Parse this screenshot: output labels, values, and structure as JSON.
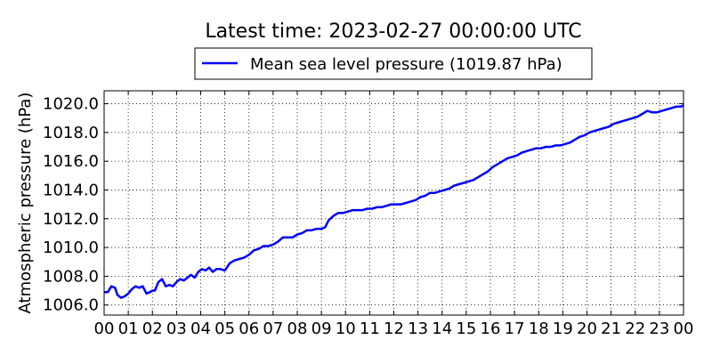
{
  "chart_data": {
    "type": "line",
    "title": "Latest time: 2023-02-27 00:00:00 UTC",
    "xlabel": "",
    "ylabel": "Atmospheric pressure (hPa)",
    "x_tick_labels": [
      "00",
      "01",
      "02",
      "03",
      "04",
      "05",
      "06",
      "07",
      "08",
      "09",
      "10",
      "11",
      "12",
      "13",
      "14",
      "15",
      "16",
      "17",
      "18",
      "19",
      "20",
      "21",
      "22",
      "23",
      "00"
    ],
    "y_tick_labels": [
      "1006.0",
      "1008.0",
      "1010.0",
      "1012.0",
      "1014.0",
      "1016.0",
      "1018.0",
      "1020.0"
    ],
    "xlim": [
      0,
      24
    ],
    "ylim": [
      1005.3,
      1020.9
    ],
    "grid": true,
    "legend_position": "top-center",
    "series": [
      {
        "name": "Mean sea level pressure (1019.87 hPa)",
        "color": "#0000ff",
        "x": [
          0,
          0.15,
          0.3,
          0.45,
          0.55,
          0.7,
          0.85,
          1.0,
          1.15,
          1.3,
          1.45,
          1.6,
          1.75,
          1.9,
          2.0,
          2.1,
          2.25,
          2.4,
          2.55,
          2.7,
          2.85,
          3.0,
          3.15,
          3.3,
          3.45,
          3.6,
          3.75,
          3.9,
          4.05,
          4.2,
          4.35,
          4.5,
          4.65,
          4.8,
          5.0,
          5.2,
          5.4,
          5.6,
          5.8,
          6.0,
          6.2,
          6.4,
          6.6,
          6.8,
          7.0,
          7.2,
          7.4,
          7.6,
          7.8,
          8.0,
          8.2,
          8.4,
          8.6,
          8.8,
          9.0,
          9.15,
          9.3,
          9.5,
          9.7,
          9.9,
          10.1,
          10.3,
          10.5,
          10.7,
          10.9,
          11.1,
          11.3,
          11.5,
          11.7,
          11.9,
          12.1,
          12.3,
          12.5,
          12.7,
          12.9,
          13.1,
          13.3,
          13.5,
          13.7,
          13.9,
          14.1,
          14.3,
          14.5,
          14.7,
          14.9,
          15.1,
          15.3,
          15.5,
          15.7,
          15.9,
          16.1,
          16.3,
          16.5,
          16.7,
          16.9,
          17.1,
          17.3,
          17.5,
          17.7,
          17.9,
          18.1,
          18.3,
          18.5,
          18.7,
          18.9,
          19.1,
          19.3,
          19.5,
          19.7,
          19.9,
          20.1,
          20.3,
          20.5,
          20.7,
          20.9,
          21.1,
          21.3,
          21.5,
          21.7,
          21.9,
          22.1,
          22.3,
          22.5,
          22.7,
          22.9,
          23.1,
          23.3,
          23.5,
          23.7,
          23.9,
          24.0
        ],
        "y": [
          1006.9,
          1006.9,
          1007.3,
          1007.2,
          1006.7,
          1006.5,
          1006.6,
          1006.8,
          1007.1,
          1007.3,
          1007.2,
          1007.3,
          1006.8,
          1006.9,
          1007.0,
          1007.0,
          1007.6,
          1007.8,
          1007.3,
          1007.4,
          1007.3,
          1007.6,
          1007.8,
          1007.7,
          1007.9,
          1008.1,
          1007.9,
          1008.3,
          1008.5,
          1008.4,
          1008.6,
          1008.3,
          1008.5,
          1008.5,
          1008.4,
          1008.9,
          1009.1,
          1009.2,
          1009.3,
          1009.5,
          1009.8,
          1009.9,
          1010.1,
          1010.1,
          1010.2,
          1010.4,
          1010.7,
          1010.7,
          1010.7,
          1010.9,
          1011.0,
          1011.2,
          1011.2,
          1011.3,
          1011.3,
          1011.4,
          1011.9,
          1012.2,
          1012.4,
          1012.4,
          1012.5,
          1012.6,
          1012.6,
          1012.6,
          1012.7,
          1012.7,
          1012.8,
          1012.8,
          1012.9,
          1013.0,
          1013.0,
          1013.0,
          1013.1,
          1013.2,
          1013.3,
          1013.5,
          1013.6,
          1013.8,
          1013.8,
          1013.9,
          1014.0,
          1014.1,
          1014.3,
          1014.4,
          1014.5,
          1014.6,
          1014.7,
          1014.9,
          1015.1,
          1015.3,
          1015.6,
          1015.8,
          1016.0,
          1016.2,
          1016.3,
          1016.4,
          1016.6,
          1016.7,
          1016.8,
          1016.9,
          1016.9,
          1017.0,
          1017.0,
          1017.1,
          1017.1,
          1017.2,
          1017.3,
          1017.5,
          1017.7,
          1017.8,
          1018.0,
          1018.1,
          1018.2,
          1018.3,
          1018.4,
          1018.6,
          1018.7,
          1018.8,
          1018.9,
          1019.0,
          1019.1,
          1019.3,
          1019.5,
          1019.4,
          1019.4,
          1019.5,
          1019.6,
          1019.7,
          1019.8,
          1019.8,
          1019.9
        ]
      }
    ]
  }
}
